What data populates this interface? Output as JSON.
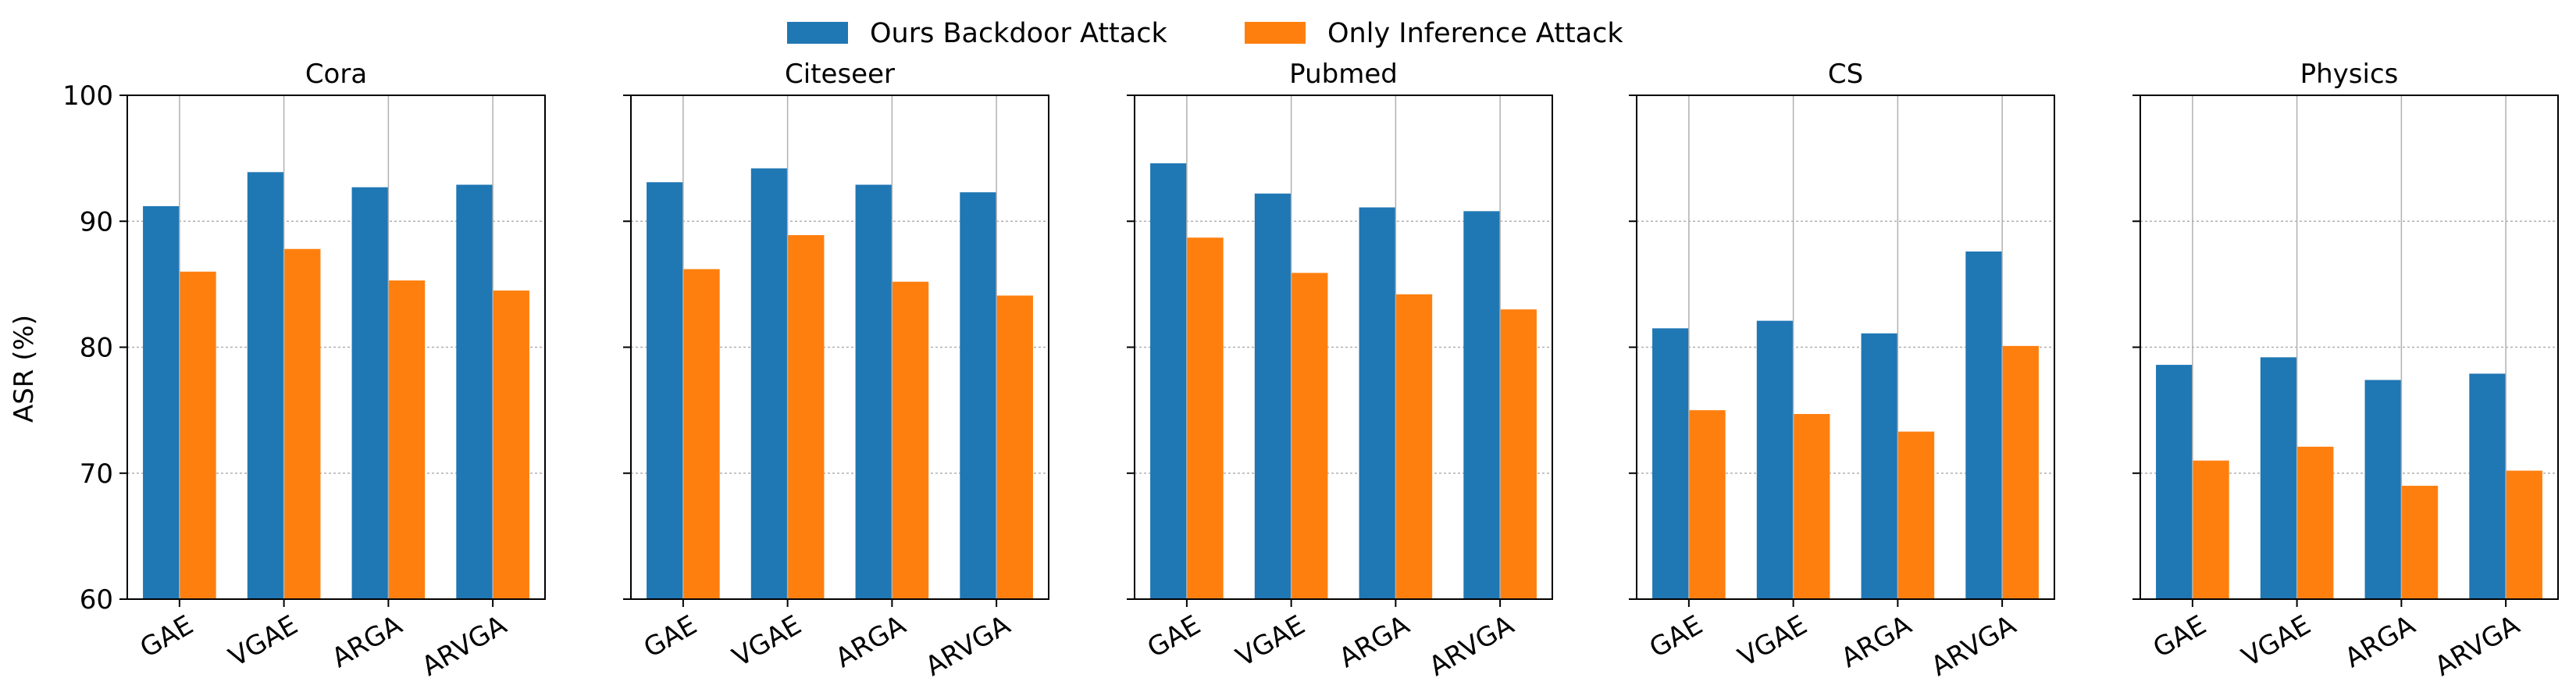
{
  "legend": [
    {
      "label": "Ours Backdoor Attack",
      "color": "#1f77b4"
    },
    {
      "label": "Only Inference Attack",
      "color": "#ff7f0e"
    }
  ],
  "ylabel": "ASR (%)",
  "chart_data": [
    {
      "type": "bar",
      "title": "Cora",
      "categories": [
        "GAE",
        "VGAE",
        "ARGA",
        "ARVGA"
      ],
      "ylim": [
        60,
        100
      ],
      "yticks": [
        60,
        70,
        80,
        90,
        100
      ],
      "grid": true,
      "legend_position": "top-center",
      "series": [
        {
          "name": "Ours Backdoor Attack",
          "color": "#1f77b4",
          "values": [
            91.2,
            93.9,
            92.7,
            92.9
          ]
        },
        {
          "name": "Only Inference Attack",
          "color": "#ff7f0e",
          "values": [
            86.0,
            87.8,
            85.3,
            84.5
          ]
        }
      ]
    },
    {
      "type": "bar",
      "title": "Citeseer",
      "categories": [
        "GAE",
        "VGAE",
        "ARGA",
        "ARVGA"
      ],
      "ylim": [
        60,
        100
      ],
      "yticks": [
        60,
        70,
        80,
        90,
        100
      ],
      "grid": true,
      "series": [
        {
          "name": "Ours Backdoor Attack",
          "color": "#1f77b4",
          "values": [
            93.1,
            94.2,
            92.9,
            92.3
          ]
        },
        {
          "name": "Only Inference Attack",
          "color": "#ff7f0e",
          "values": [
            86.2,
            88.9,
            85.2,
            84.1
          ]
        }
      ]
    },
    {
      "type": "bar",
      "title": "Pubmed",
      "categories": [
        "GAE",
        "VGAE",
        "ARGA",
        "ARVGA"
      ],
      "ylim": [
        60,
        100
      ],
      "yticks": [
        60,
        70,
        80,
        90,
        100
      ],
      "grid": true,
      "series": [
        {
          "name": "Ours Backdoor Attack",
          "color": "#1f77b4",
          "values": [
            94.6,
            92.2,
            91.1,
            90.8
          ]
        },
        {
          "name": "Only Inference Attack",
          "color": "#ff7f0e",
          "values": [
            88.7,
            85.9,
            84.2,
            83.0
          ]
        }
      ]
    },
    {
      "type": "bar",
      "title": "CS",
      "categories": [
        "GAE",
        "VGAE",
        "ARGA",
        "ARVGA"
      ],
      "ylim": [
        60,
        100
      ],
      "yticks": [
        60,
        70,
        80,
        90,
        100
      ],
      "grid": true,
      "series": [
        {
          "name": "Ours Backdoor Attack",
          "color": "#1f77b4",
          "values": [
            81.5,
            82.1,
            81.1,
            87.6
          ]
        },
        {
          "name": "Only Inference Attack",
          "color": "#ff7f0e",
          "values": [
            75.0,
            74.7,
            73.3,
            80.1
          ]
        }
      ]
    },
    {
      "type": "bar",
      "title": "Physics",
      "categories": [
        "GAE",
        "VGAE",
        "ARGA",
        "ARVGA"
      ],
      "ylim": [
        60,
        100
      ],
      "yticks": [
        60,
        70,
        80,
        90,
        100
      ],
      "grid": true,
      "series": [
        {
          "name": "Ours Backdoor Attack",
          "color": "#1f77b4",
          "values": [
            78.6,
            79.2,
            77.4,
            77.9
          ]
        },
        {
          "name": "Only Inference Attack",
          "color": "#ff7f0e",
          "values": [
            71.0,
            72.1,
            69.0,
            70.2
          ]
        }
      ]
    }
  ]
}
